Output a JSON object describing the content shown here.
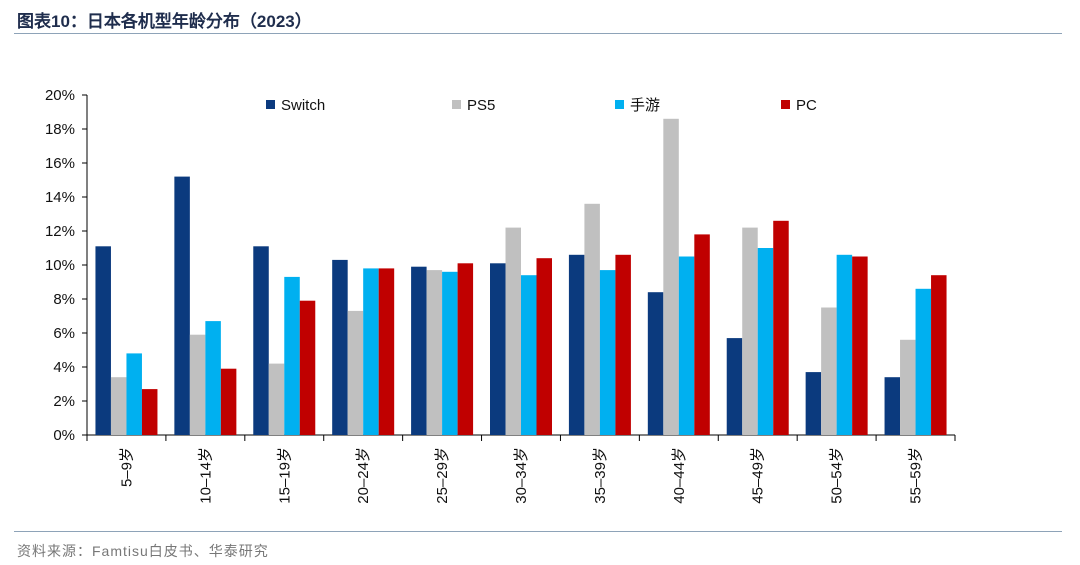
{
  "header": {
    "title": "图表10：日本各机型年龄分布（2023）"
  },
  "footer": {
    "source": "资料来源：Famtisu白皮书、华泰研究"
  },
  "chart_data": {
    "type": "bar",
    "title": "日本各机型年龄分布（2023）",
    "xlabel": "",
    "ylabel": "",
    "ylim": [
      0,
      20
    ],
    "yticks": [
      "0%",
      "2%",
      "4%",
      "6%",
      "8%",
      "10%",
      "12%",
      "14%",
      "16%",
      "18%",
      "20%"
    ],
    "grid": false,
    "legend_position": "top",
    "categories": [
      "5–9岁",
      "10–14岁",
      "15–19岁",
      "20–24岁",
      "25–29岁",
      "30–34岁",
      "35–39岁",
      "40–44岁",
      "45–49岁",
      "50–54岁",
      "55–59岁"
    ],
    "series": [
      {
        "name": "Switch",
        "color": "#0b3a7e",
        "values": [
          11.1,
          15.2,
          11.1,
          10.3,
          9.9,
          10.1,
          10.6,
          8.4,
          5.7,
          3.7,
          3.4
        ]
      },
      {
        "name": "PS5",
        "color": "#c0c0c0",
        "values": [
          3.4,
          5.9,
          4.2,
          7.3,
          9.7,
          12.2,
          13.6,
          18.6,
          12.2,
          7.5,
          5.6
        ]
      },
      {
        "name": "手游",
        "color": "#00b0f0",
        "values": [
          4.8,
          6.7,
          9.3,
          9.8,
          9.6,
          9.4,
          9.7,
          10.5,
          11.0,
          10.6,
          8.6
        ]
      },
      {
        "name": "PC",
        "color": "#c00000",
        "values": [
          2.7,
          3.9,
          7.9,
          9.8,
          10.1,
          10.4,
          10.6,
          11.8,
          12.6,
          10.5,
          9.4
        ]
      }
    ]
  }
}
